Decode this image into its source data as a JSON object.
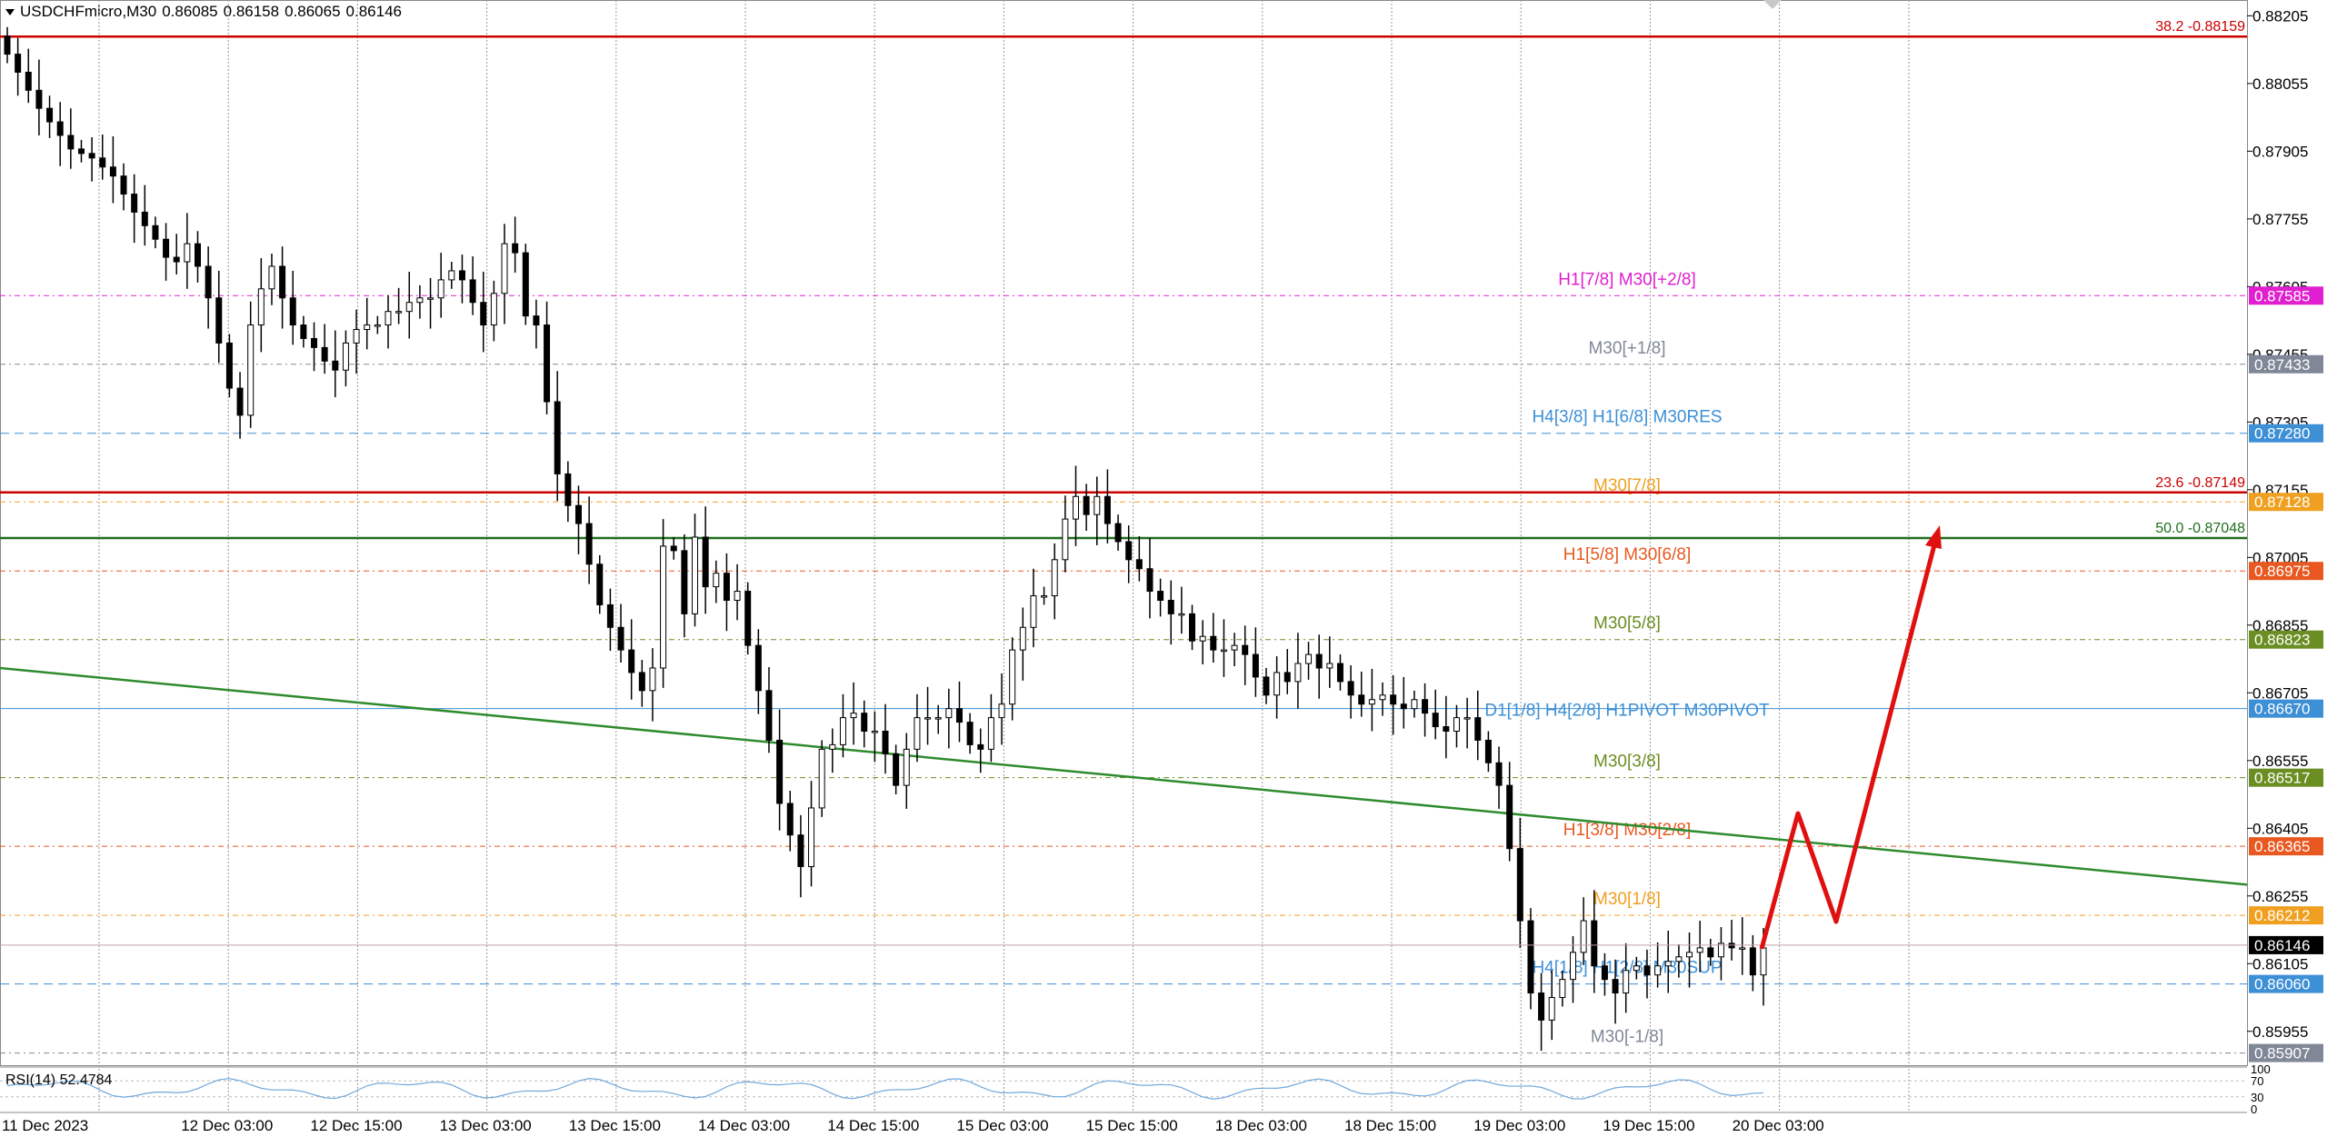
{
  "header": {
    "symbol": "USDCHFmicro,M30",
    "open": "0.86085",
    "high": "0.86158",
    "low": "0.86065",
    "close": "0.86146"
  },
  "rsi": {
    "label": "RSI(14) 52.4784",
    "scale_labels": [
      "100",
      "70",
      "30",
      "0"
    ]
  },
  "colors": {
    "background": "#ffffff",
    "grid": "#9a9a9a",
    "candle": "#000000",
    "fib_red": "#cc0000",
    "fib_green": "#1e6e1e",
    "trendline": "#2e8b2e",
    "arrow": "#e01010",
    "rsi": "#6fa8dc"
  },
  "chart_data": {
    "type": "candlestick",
    "symbol": "USDCHFmicro",
    "timeframe": "M30",
    "y_ticks": [
      "0.88205",
      "0.88055",
      "0.87905",
      "0.87755",
      "0.87605",
      "0.87455",
      "0.87305",
      "0.87155",
      "0.87005",
      "0.86855",
      "0.86705",
      "0.86555",
      "0.86405",
      "0.86255",
      "0.86105",
      "0.85955"
    ],
    "x_ticks": [
      "11 Dec 2023",
      "12 Dec 03:00",
      "12 Dec 15:00",
      "13 Dec 03:00",
      "13 Dec 15:00",
      "14 Dec 03:00",
      "14 Dec 15:00",
      "15 Dec 03:00",
      "15 Dec 15:00",
      "18 Dec 03:00",
      "18 Dec 15:00",
      "19 Dec 03:00",
      "19 Dec 15:00",
      "20 Dec 03:00"
    ],
    "ylim": [
      0.8588,
      0.8824
    ],
    "current_price": {
      "value": 0.86146,
      "text": "0.86146",
      "color": "#000000"
    },
    "fib_levels": [
      {
        "text": "38.2 -0.88159",
        "value": 0.88159,
        "color": "#cc0000"
      },
      {
        "text": "23.6 -0.87149",
        "value": 0.87149,
        "color": "#cc0000"
      },
      {
        "text": "50.0 -0.87048",
        "value": 0.87048,
        "color": "#1e6e1e"
      }
    ],
    "murrey_levels": [
      {
        "label": "H1[7/8] M30[+2/8]",
        "price": "0.87585",
        "value": 0.87585,
        "color": "#e020d0",
        "style": "dashdot"
      },
      {
        "label": "M30[+1/8]",
        "price": "0.87433",
        "value": 0.87433,
        "color": "#808898",
        "style": "dashdot"
      },
      {
        "label": "H4[3/8] H1[6/8] M30RES",
        "price": "0.87280",
        "value": 0.8728,
        "color": "#3d8fd6",
        "style": "dash"
      },
      {
        "label": "M30[7/8]",
        "price": "0.87128",
        "value": 0.87128,
        "color": "#f0a020",
        "style": "dashdot"
      },
      {
        "label": "H1[5/8] M30[6/8]",
        "price": "0.86975",
        "value": 0.86975,
        "color": "#e85820",
        "style": "dashdot"
      },
      {
        "label": "M30[5/8]",
        "price": "0.86823",
        "value": 0.86823,
        "color": "#6b8e23",
        "style": "dashdot"
      },
      {
        "label": "D1[1/8] H4[2/8] H1PIVOT M30PIVOT",
        "price": "0.86670",
        "value": 0.8667,
        "color": "#3d8fd6",
        "style": "solid"
      },
      {
        "label": "M30[3/8]",
        "price": "0.86517",
        "value": 0.86517,
        "color": "#6b8e23",
        "style": "dashdot"
      },
      {
        "label": "H1[3/8] M30[2/8]",
        "price": "0.86365",
        "value": 0.86365,
        "color": "#e85820",
        "style": "dashdot"
      },
      {
        "label": "M30[1/8]",
        "price": "0.86212",
        "value": 0.86212,
        "color": "#f0a020",
        "style": "dashdot"
      },
      {
        "label": "H4[1/8] H1[2/8] M30SUP",
        "price": "0.86060",
        "value": 0.8606,
        "color": "#3d8fd6",
        "style": "dash"
      },
      {
        "label": "M30[-1/8]",
        "price": "0.85907",
        "value": 0.85907,
        "color": "#808898",
        "style": "dashdot"
      }
    ],
    "trendline": {
      "from": [
        0,
        0.8676
      ],
      "to": [
        1,
        0.8628
      ],
      "color": "#2e8b2e"
    },
    "closes": [
      0.8812,
      0.8808,
      0.8804,
      0.88,
      0.8797,
      0.8794,
      0.8791,
      0.879,
      0.8789,
      0.8787,
      0.8785,
      0.8781,
      0.8777,
      0.8774,
      0.8771,
      0.8767,
      0.8766,
      0.877,
      0.8765,
      0.8758,
      0.8748,
      0.8738,
      0.8732,
      0.8752,
      0.876,
      0.8765,
      0.8758,
      0.8752,
      0.8749,
      0.8747,
      0.8744,
      0.8742,
      0.8748,
      0.8751,
      0.8752,
      0.8752,
      0.8755,
      0.8755,
      0.8757,
      0.8758,
      0.8758,
      0.8762,
      0.8764,
      0.8762,
      0.8757,
      0.8752,
      0.8759,
      0.877,
      0.8768,
      0.8754,
      0.8752,
      0.8735,
      0.8719,
      0.8712,
      0.8708,
      0.8699,
      0.869,
      0.8685,
      0.868,
      0.8675,
      0.8671,
      0.8676,
      0.8703,
      0.8702,
      0.8688,
      0.8705,
      0.8694,
      0.8697,
      0.8691,
      0.8693,
      0.8681,
      0.8671,
      0.866,
      0.8646,
      0.8639,
      0.8632,
      0.8645,
      0.8658,
      0.8659,
      0.8665,
      0.8666,
      0.8662,
      0.8662,
      0.8657,
      0.865,
      0.8658,
      0.8665,
      0.8665,
      0.8665,
      0.8667,
      0.8664,
      0.8659,
      0.8658,
      0.8665,
      0.8668,
      0.868,
      0.8685,
      0.8692,
      0.8692,
      0.87,
      0.8709,
      0.8714,
      0.871,
      0.8714,
      0.8708,
      0.8704,
      0.87,
      0.8698,
      0.8693,
      0.8691,
      0.8688,
      0.8688,
      0.8682,
      0.8683,
      0.868,
      0.868,
      0.8681,
      0.8679,
      0.8674,
      0.867,
      0.8675,
      0.8673,
      0.8677,
      0.8679,
      0.8676,
      0.8677,
      0.8673,
      0.867,
      0.8668,
      0.8669,
      0.867,
      0.8668,
      0.8667,
      0.8669,
      0.8666,
      0.8663,
      0.8662,
      0.8665,
      0.8665,
      0.866,
      0.8655,
      0.865,
      0.8636,
      0.862,
      0.8604,
      0.8598,
      0.8603,
      0.8607,
      0.8613,
      0.862,
      0.861,
      0.8607,
      0.8604,
      0.8609,
      0.861,
      0.8608,
      0.861,
      0.8611,
      0.8612,
      0.8613,
      0.8614,
      0.8612,
      0.8615,
      0.8614,
      0.8614,
      0.8608,
      0.8614
    ]
  }
}
